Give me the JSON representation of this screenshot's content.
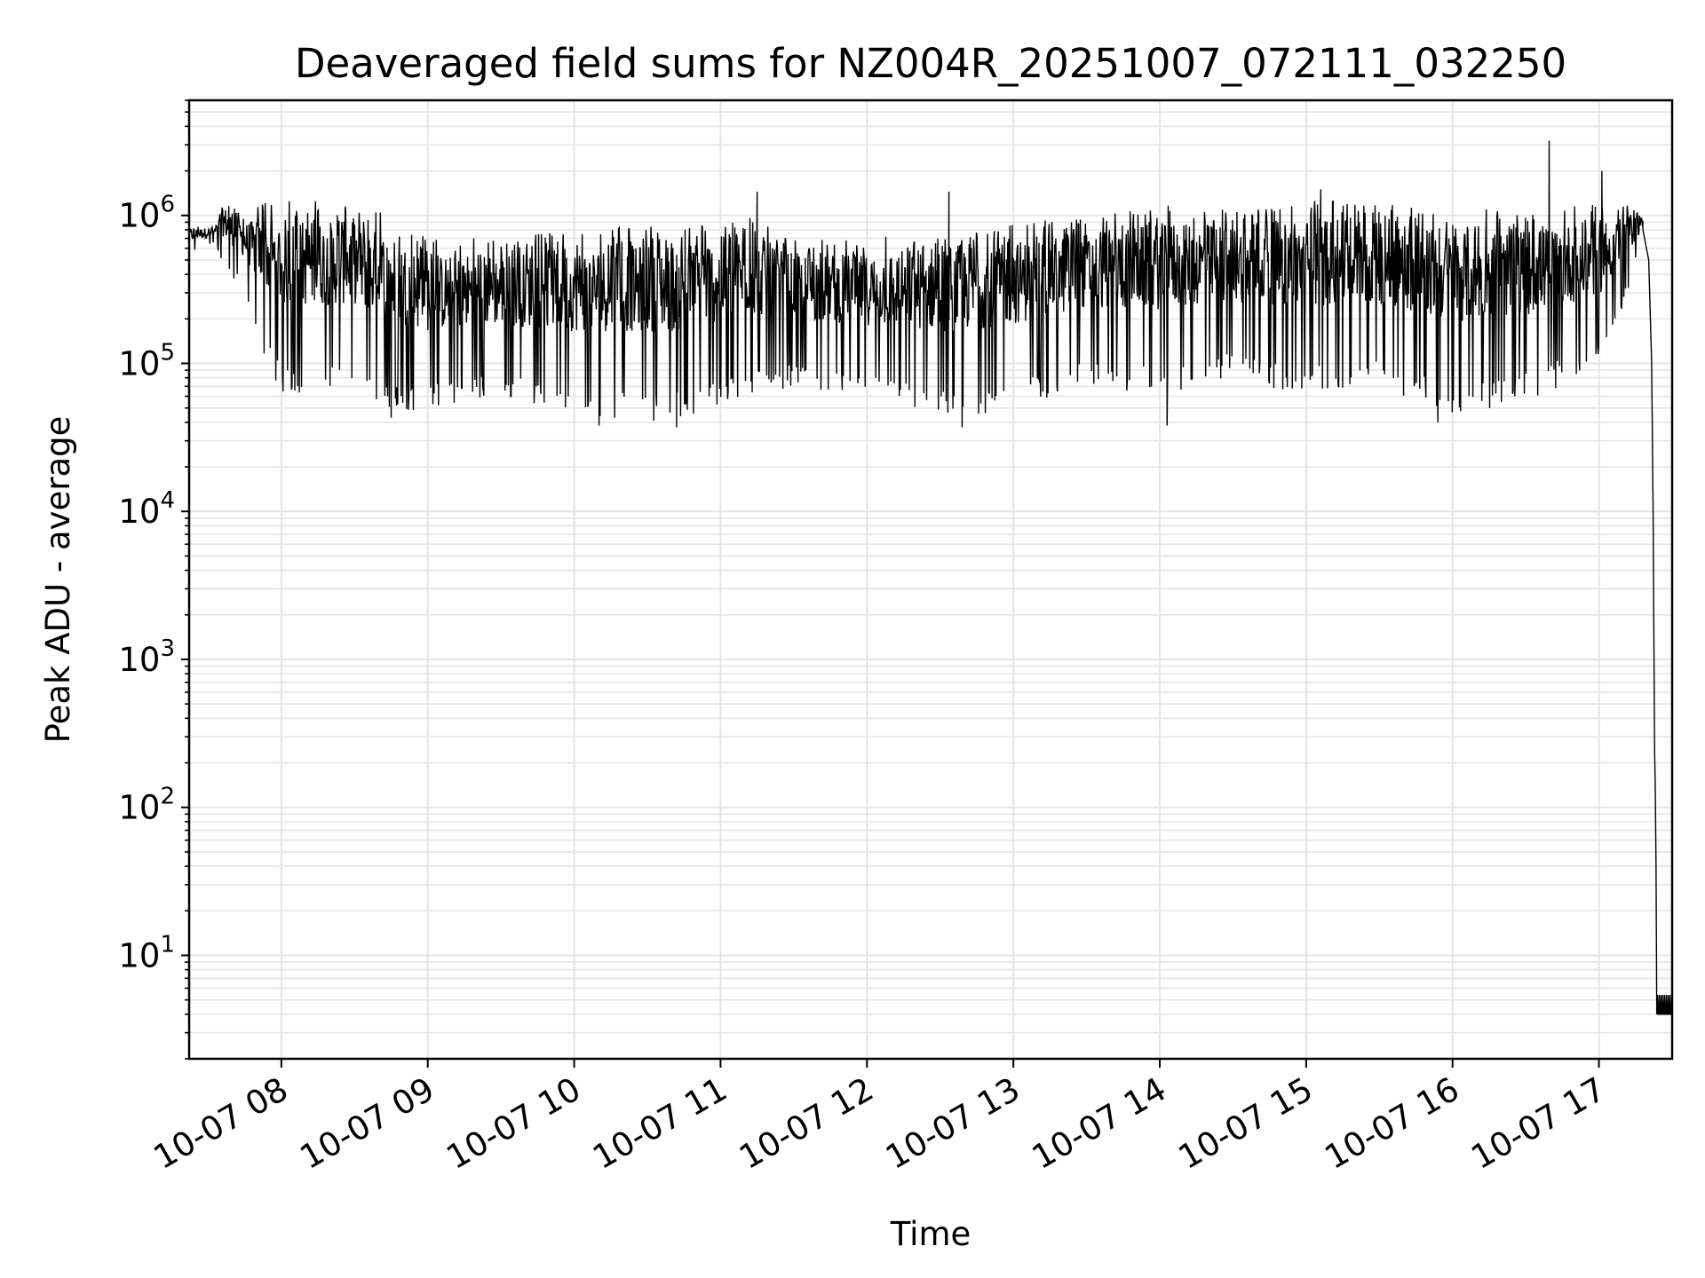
{
  "chart_data": {
    "type": "line",
    "title": "Deaveraged field sums for NZ004R_20251007_072111_032250",
    "xlabel": "Time",
    "ylabel": "Peak ADU - average",
    "yscale": "log",
    "ylim": [
      2,
      6000000
    ],
    "xlim_hours": [
      7.37,
      17.5
    ],
    "grid": true,
    "line_color": "#000000",
    "grid_color": "#e5e5e5",
    "x_ticks": [
      {
        "hour": 8,
        "label": "10-07 08"
      },
      {
        "hour": 9,
        "label": "10-07 09"
      },
      {
        "hour": 10,
        "label": "10-07 10"
      },
      {
        "hour": 11,
        "label": "10-07 11"
      },
      {
        "hour": 12,
        "label": "10-07 12"
      },
      {
        "hour": 13,
        "label": "10-07 13"
      },
      {
        "hour": 14,
        "label": "10-07 14"
      },
      {
        "hour": 15,
        "label": "10-07 15"
      },
      {
        "hour": 16,
        "label": "10-07 16"
      },
      {
        "hour": 17,
        "label": "10-07 17"
      }
    ],
    "y_ticks": [
      {
        "value": 10,
        "base": "10",
        "exp": "1"
      },
      {
        "value": 100,
        "base": "10",
        "exp": "2"
      },
      {
        "value": 1000,
        "base": "10",
        "exp": "3"
      },
      {
        "value": 10000,
        "base": "10",
        "exp": "4"
      },
      {
        "value": 100000,
        "base": "10",
        "exp": "5"
      },
      {
        "value": 1000000,
        "base": "10",
        "exp": "6"
      }
    ],
    "series": [
      {
        "name": "Deaveraged field sum",
        "envelope": [
          {
            "hour": 7.37,
            "low": 550000,
            "high": 850000
          },
          {
            "hour": 7.55,
            "low": 650000,
            "high": 850000
          },
          {
            "hour": 7.6,
            "low": 450000,
            "high": 1300000
          },
          {
            "hour": 7.75,
            "low": 300000,
            "high": 1000000
          },
          {
            "hour": 7.85,
            "low": 120000,
            "high": 1200000
          },
          {
            "hour": 8.0,
            "low": 60000,
            "high": 1300000
          },
          {
            "hour": 8.5,
            "low": 70000,
            "high": 1200000
          },
          {
            "hour": 8.75,
            "low": 45000,
            "high": 1000000
          },
          {
            "hour": 9.0,
            "low": 50000,
            "high": 700000
          },
          {
            "hour": 9.5,
            "low": 60000,
            "high": 700000
          },
          {
            "hour": 10.0,
            "low": 45000,
            "high": 800000
          },
          {
            "hour": 10.7,
            "low": 40000,
            "high": 900000
          },
          {
            "hour": 11.2,
            "low": 60000,
            "high": 1000000
          },
          {
            "hour": 11.5,
            "low": 70000,
            "high": 700000
          },
          {
            "hour": 12.0,
            "low": 60000,
            "high": 700000
          },
          {
            "hour": 12.6,
            "low": 40000,
            "high": 900000
          },
          {
            "hour": 13.0,
            "low": 50000,
            "high": 900000
          },
          {
            "hour": 13.5,
            "low": 70000,
            "high": 1000000
          },
          {
            "hour": 14.0,
            "low": 60000,
            "high": 1200000
          },
          {
            "hour": 14.5,
            "low": 80000,
            "high": 1100000
          },
          {
            "hour": 15.0,
            "low": 60000,
            "high": 1300000
          },
          {
            "hour": 15.5,
            "low": 70000,
            "high": 1200000
          },
          {
            "hour": 16.0,
            "low": 45000,
            "high": 1100000
          },
          {
            "hour": 16.5,
            "low": 55000,
            "high": 1100000
          },
          {
            "hour": 17.0,
            "low": 90000,
            "high": 1200000
          },
          {
            "hour": 17.2,
            "low": 300000,
            "high": 1200000
          },
          {
            "hour": 17.3,
            "low": 700000,
            "high": 1000000
          }
        ],
        "spikes": [
          {
            "hour": 11.25,
            "value": 1450000
          },
          {
            "hour": 12.56,
            "value": 1450000
          },
          {
            "hour": 15.1,
            "value": 1500000
          },
          {
            "hour": 16.66,
            "value": 3200000
          },
          {
            "hour": 17.02,
            "value": 2000000
          }
        ],
        "dips": [
          {
            "hour": 8.75,
            "value": 43000
          },
          {
            "hour": 10.17,
            "value": 38000
          },
          {
            "hour": 10.7,
            "value": 37000
          },
          {
            "hour": 12.65,
            "value": 37000
          },
          {
            "hour": 14.05,
            "value": 38000
          },
          {
            "hour": 15.9,
            "value": 40000
          }
        ],
        "falloff": [
          {
            "hour": 17.3,
            "value": 800000
          },
          {
            "hour": 17.34,
            "value": 500000
          },
          {
            "hour": 17.36,
            "value": 100000
          },
          {
            "hour": 17.37,
            "value": 10000
          },
          {
            "hour": 17.38,
            "value": 250
          },
          {
            "hour": 17.385,
            "value": 130
          },
          {
            "hour": 17.39,
            "value": 40
          },
          {
            "hour": 17.395,
            "value": 4
          }
        ],
        "floor_value": 4
      }
    ]
  }
}
